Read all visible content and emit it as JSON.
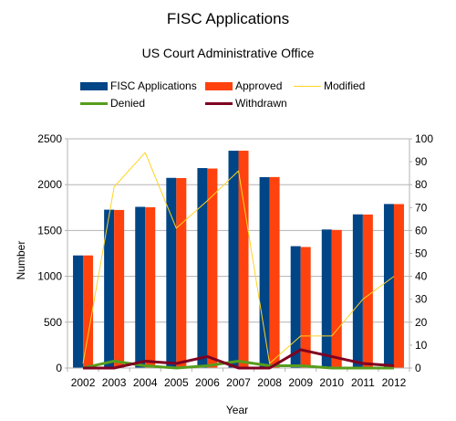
{
  "chart_data": {
    "type": "bar",
    "title": "FISC Applications",
    "subtitle": "US Court Administrative Office",
    "xlabel": "Year",
    "ylabel": "Number",
    "categories": [
      "2002",
      "2003",
      "2004",
      "2005",
      "2006",
      "2007",
      "2008",
      "2009",
      "2010",
      "2011",
      "2012"
    ],
    "ylim": [
      0,
      2500
    ],
    "y_ticks": [
      "0",
      "500",
      "1000",
      "1500",
      "2000",
      "2500"
    ],
    "y2lim": [
      0,
      100
    ],
    "y2_ticks": [
      "0",
      "10",
      "20",
      "30",
      "40",
      "50",
      "60",
      "70",
      "80",
      "90",
      "100"
    ],
    "grid": "horizontal",
    "legend_position": "top",
    "series": [
      {
        "name": "FISC Applications",
        "kind": "bar",
        "axis": "left",
        "color": "#004586",
        "values": [
          1228,
          1727,
          1758,
          2074,
          2181,
          2370,
          2082,
          1329,
          1511,
          1676,
          1789
        ]
      },
      {
        "name": "Approved",
        "kind": "bar",
        "axis": "left",
        "color": "#ff420e",
        "values": [
          1228,
          1724,
          1754,
          2072,
          2176,
          2370,
          2083,
          1320,
          1506,
          1674,
          1788
        ]
      },
      {
        "name": "Modified",
        "kind": "line",
        "axis": "right",
        "color": "#ffd320",
        "values": [
          2,
          79,
          94,
          61,
          73,
          86,
          2,
          14,
          14,
          30,
          40
        ]
      },
      {
        "name": "Denied",
        "kind": "line",
        "axis": "right",
        "color": "#579d1c",
        "values": [
          0,
          3,
          1,
          0,
          1,
          3,
          1,
          1,
          0,
          0,
          0
        ]
      },
      {
        "name": "Withdrawn",
        "kind": "line",
        "axis": "right",
        "color": "#7e0021",
        "values": [
          0,
          0,
          3,
          2,
          5,
          0,
          0,
          8,
          5,
          2,
          1
        ]
      }
    ]
  }
}
